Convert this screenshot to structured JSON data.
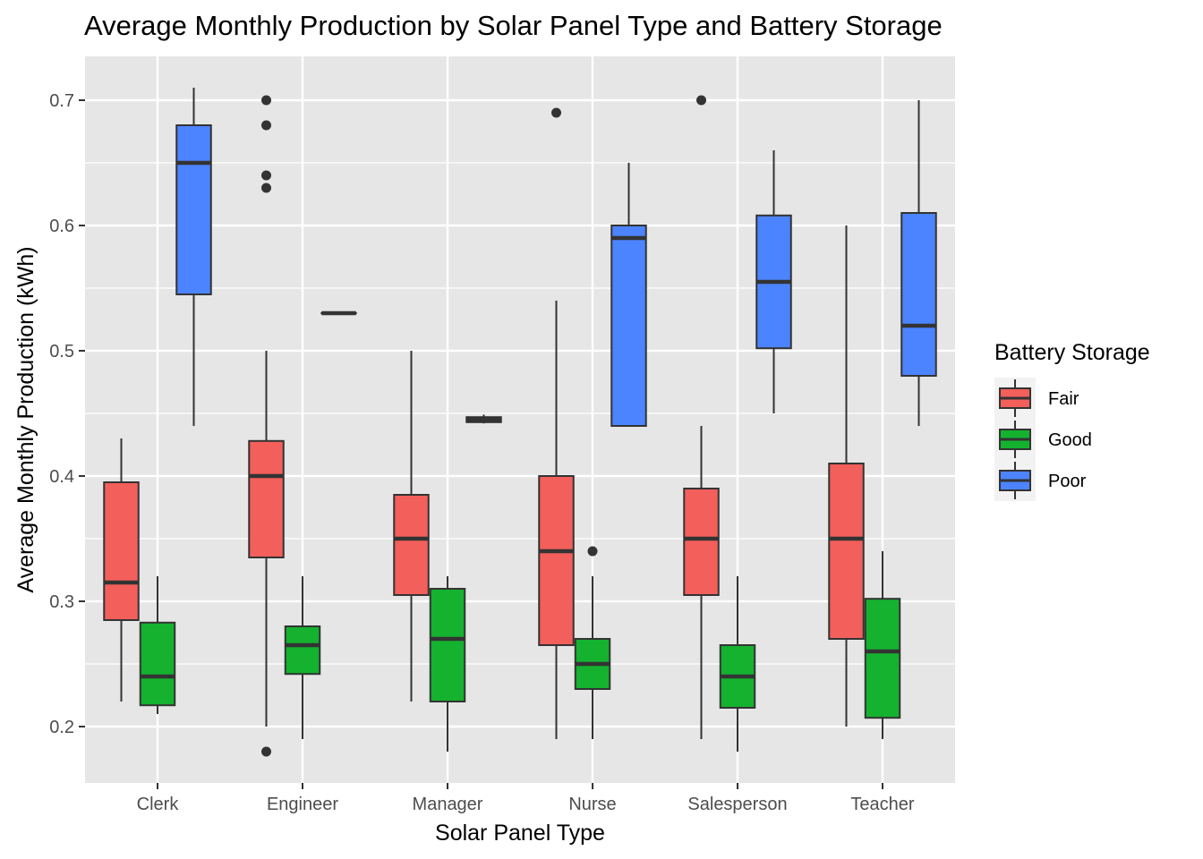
{
  "chart_data": {
    "type": "boxplot",
    "title": "Average Monthly Production by Solar Panel Type and Battery Storage",
    "xlabel": "Solar Panel Type",
    "ylabel": "Average Monthly Production (kWh)",
    "ylim": [
      0.155,
      0.735
    ],
    "yticks": [
      0.2,
      0.3,
      0.4,
      0.5,
      0.6,
      0.7
    ],
    "ytick_labels": [
      "0.2",
      "0.3",
      "0.4",
      "0.5",
      "0.6",
      "0.7"
    ],
    "categories": [
      "Clerk",
      "Engineer",
      "Manager",
      "Nurse",
      "Salesperson",
      "Teacher"
    ],
    "grid": true,
    "legend": {
      "title": "Battery Storage",
      "placement": "right",
      "entries": [
        {
          "name": "Fair",
          "color": "#F8766D"
        },
        {
          "name": "Good",
          "color": "#00BA38"
        },
        {
          "name": "Poor",
          "color": "#619CFF"
        }
      ]
    },
    "colors": {
      "Fair": "#F35F5B",
      "Good": "#14B22F",
      "Poor": "#4C84FF",
      "panel": "#E6E6E6",
      "grid": "#FFFFFF",
      "outline": "#333333"
    },
    "series": [
      {
        "name": "Fair",
        "boxes": [
          {
            "min": 0.22,
            "q1": 0.285,
            "median": 0.315,
            "q3": 0.395,
            "max": 0.43,
            "outliers": []
          },
          {
            "min": 0.2,
            "q1": 0.335,
            "median": 0.4,
            "q3": 0.428,
            "max": 0.5,
            "outliers": [
              0.18,
              0.63,
              0.64,
              0.68,
              0.7
            ]
          },
          {
            "min": 0.22,
            "q1": 0.305,
            "median": 0.35,
            "q3": 0.385,
            "max": 0.5,
            "outliers": []
          },
          {
            "min": 0.19,
            "q1": 0.265,
            "median": 0.34,
            "q3": 0.4,
            "max": 0.54,
            "outliers": [
              0.69
            ]
          },
          {
            "min": 0.19,
            "q1": 0.305,
            "median": 0.35,
            "q3": 0.39,
            "max": 0.44,
            "outliers": [
              0.7
            ]
          },
          {
            "min": 0.2,
            "q1": 0.27,
            "median": 0.35,
            "q3": 0.41,
            "max": 0.6,
            "outliers": []
          }
        ]
      },
      {
        "name": "Good",
        "boxes": [
          {
            "min": 0.21,
            "q1": 0.217,
            "median": 0.24,
            "q3": 0.283,
            "max": 0.32,
            "outliers": []
          },
          {
            "min": 0.19,
            "q1": 0.242,
            "median": 0.265,
            "q3": 0.28,
            "max": 0.32,
            "outliers": []
          },
          {
            "min": 0.18,
            "q1": 0.22,
            "median": 0.27,
            "q3": 0.31,
            "max": 0.32,
            "outliers": []
          },
          {
            "min": 0.19,
            "q1": 0.23,
            "median": 0.25,
            "q3": 0.27,
            "max": 0.32,
            "outliers": [
              0.34
            ]
          },
          {
            "min": 0.18,
            "q1": 0.215,
            "median": 0.24,
            "q3": 0.265,
            "max": 0.32,
            "outliers": []
          },
          {
            "min": 0.19,
            "q1": 0.207,
            "median": 0.26,
            "q3": 0.302,
            "max": 0.34,
            "outliers": []
          }
        ]
      },
      {
        "name": "Poor",
        "boxes": [
          {
            "min": 0.44,
            "q1": 0.545,
            "median": 0.65,
            "q3": 0.68,
            "max": 0.71,
            "outliers": []
          },
          {
            "min": 0.53,
            "q1": 0.53,
            "median": 0.53,
            "q3": 0.53,
            "max": 0.53,
            "outliers": []
          },
          {
            "min": 0.442,
            "q1": 0.443,
            "median": 0.445,
            "q3": 0.447,
            "max": 0.449,
            "outliers": []
          },
          {
            "min": 0.44,
            "q1": 0.44,
            "median": 0.59,
            "q3": 0.6,
            "max": 0.65,
            "outliers": []
          },
          {
            "min": 0.45,
            "q1": 0.502,
            "median": 0.555,
            "q3": 0.608,
            "max": 0.66,
            "outliers": []
          },
          {
            "min": 0.44,
            "q1": 0.48,
            "median": 0.52,
            "q3": 0.61,
            "max": 0.7,
            "outliers": []
          }
        ]
      }
    ]
  }
}
